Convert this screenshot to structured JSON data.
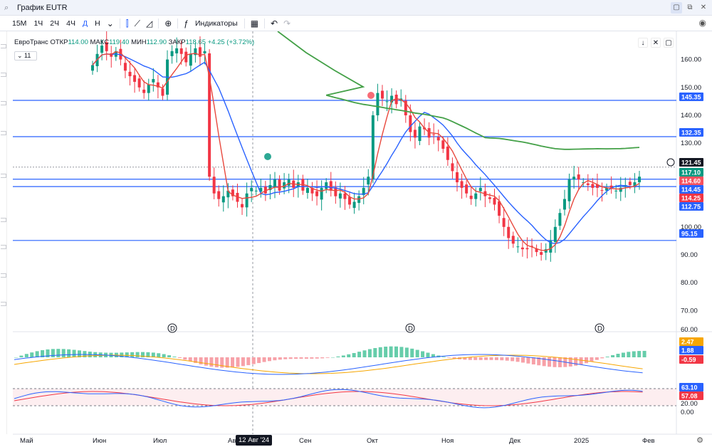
{
  "window": {
    "title": "График EUTR",
    "buttons": [
      "▢",
      "⧉",
      "✕"
    ]
  },
  "toolbar": {
    "timeframes": [
      "15М",
      "1Ч",
      "2Ч",
      "4Ч",
      "Д",
      "Н"
    ],
    "active_timeframe": "Д",
    "indicators_label": "Индикаторы"
  },
  "legend": {
    "name": "ЕвроТранс",
    "open_label": "ОТКР",
    "open": "114.00",
    "high_label": "МАКС",
    "high": "119.40",
    "low_label": "МИН",
    "low": "112.90",
    "close_label": "ЗАКР",
    "close": "118.65",
    "change": "+4.25 (+3.72%)",
    "indicator_count": "11"
  },
  "chart_data": {
    "type": "line",
    "price_axis": [
      160,
      150,
      140,
      130,
      120,
      110,
      100,
      90,
      80,
      70
    ],
    "price_range": [
      67,
      165
    ],
    "x_axis_labels": [
      "Май",
      "Июн",
      "Июл",
      "Авг",
      "Сен",
      "Окт",
      "Ноя",
      "Дек",
      "2025",
      "Фев"
    ],
    "crosshair_label": "12 Авг '24",
    "horizontal_levels": [
      145.35,
      132.35,
      117.1,
      114.45,
      95.15
    ],
    "price_badges": [
      {
        "value": "145.35",
        "color": "#2962ff"
      },
      {
        "value": "132.35",
        "color": "#2962ff"
      },
      {
        "value": "121.45",
        "color": "#131722"
      },
      {
        "value": "117.10",
        "color": "#089981"
      },
      {
        "value": "114.60",
        "color": "#f7525f"
      },
      {
        "value": "114.45",
        "color": "#2962ff"
      },
      {
        "value": "114.25",
        "color": "#f23645"
      },
      {
        "value": "112.75",
        "color": "#2962ff"
      },
      {
        "value": "95.15",
        "color": "#2962ff"
      }
    ],
    "macd_axis": [
      "60.00"
    ],
    "macd_badges": [
      {
        "value": "2.47",
        "color": "#f7a600"
      },
      {
        "value": "1.88",
        "color": "#2962ff"
      },
      {
        "value": "-0.59",
        "color": "#f23645"
      }
    ],
    "stoch_axis": [
      "20.00",
      "0.00"
    ],
    "stoch_badges": [
      {
        "value": "63.10",
        "color": "#2962ff"
      },
      {
        "value": "57.08",
        "color": "#f23645"
      }
    ],
    "dividend_markers": [
      "D",
      "D",
      "D",
      "D"
    ],
    "close_series": [
      158,
      162,
      165,
      163,
      161,
      163,
      160,
      156,
      154,
      152,
      150,
      148,
      151,
      153,
      150,
      147,
      160,
      163,
      164,
      162,
      159,
      162,
      164,
      161,
      163,
      118,
      112,
      110,
      111,
      113,
      111,
      109,
      107,
      112,
      114,
      113,
      114,
      112,
      115,
      117,
      113,
      116,
      117,
      114,
      116,
      113,
      114,
      112,
      111,
      114,
      116,
      113,
      111,
      112,
      110,
      108,
      109,
      111,
      114,
      118,
      140,
      148,
      146,
      145,
      147,
      144,
      146,
      140,
      134,
      132,
      136,
      135,
      132,
      133,
      131,
      128,
      124,
      120,
      116,
      114,
      112,
      110,
      112,
      114,
      111,
      110,
      108,
      104,
      100,
      96,
      94,
      93,
      92,
      92,
      93,
      91,
      90,
      92,
      95,
      100,
      105,
      110,
      117,
      118,
      117,
      116,
      115,
      114,
      114,
      113,
      114,
      114,
      113,
      114,
      115,
      115,
      116,
      118
    ],
    "colors": {
      "up": "#089981",
      "down": "#f23645",
      "ma_fast": "#e8483d",
      "ma_mid": "#2962ff",
      "ma_slow": "#43a047",
      "level": "#2962ff",
      "macd_line": "#2962ff",
      "macd_signal": "#f7a600",
      "stoch_k": "#2962ff",
      "stoch_d": "#f23645"
    }
  }
}
